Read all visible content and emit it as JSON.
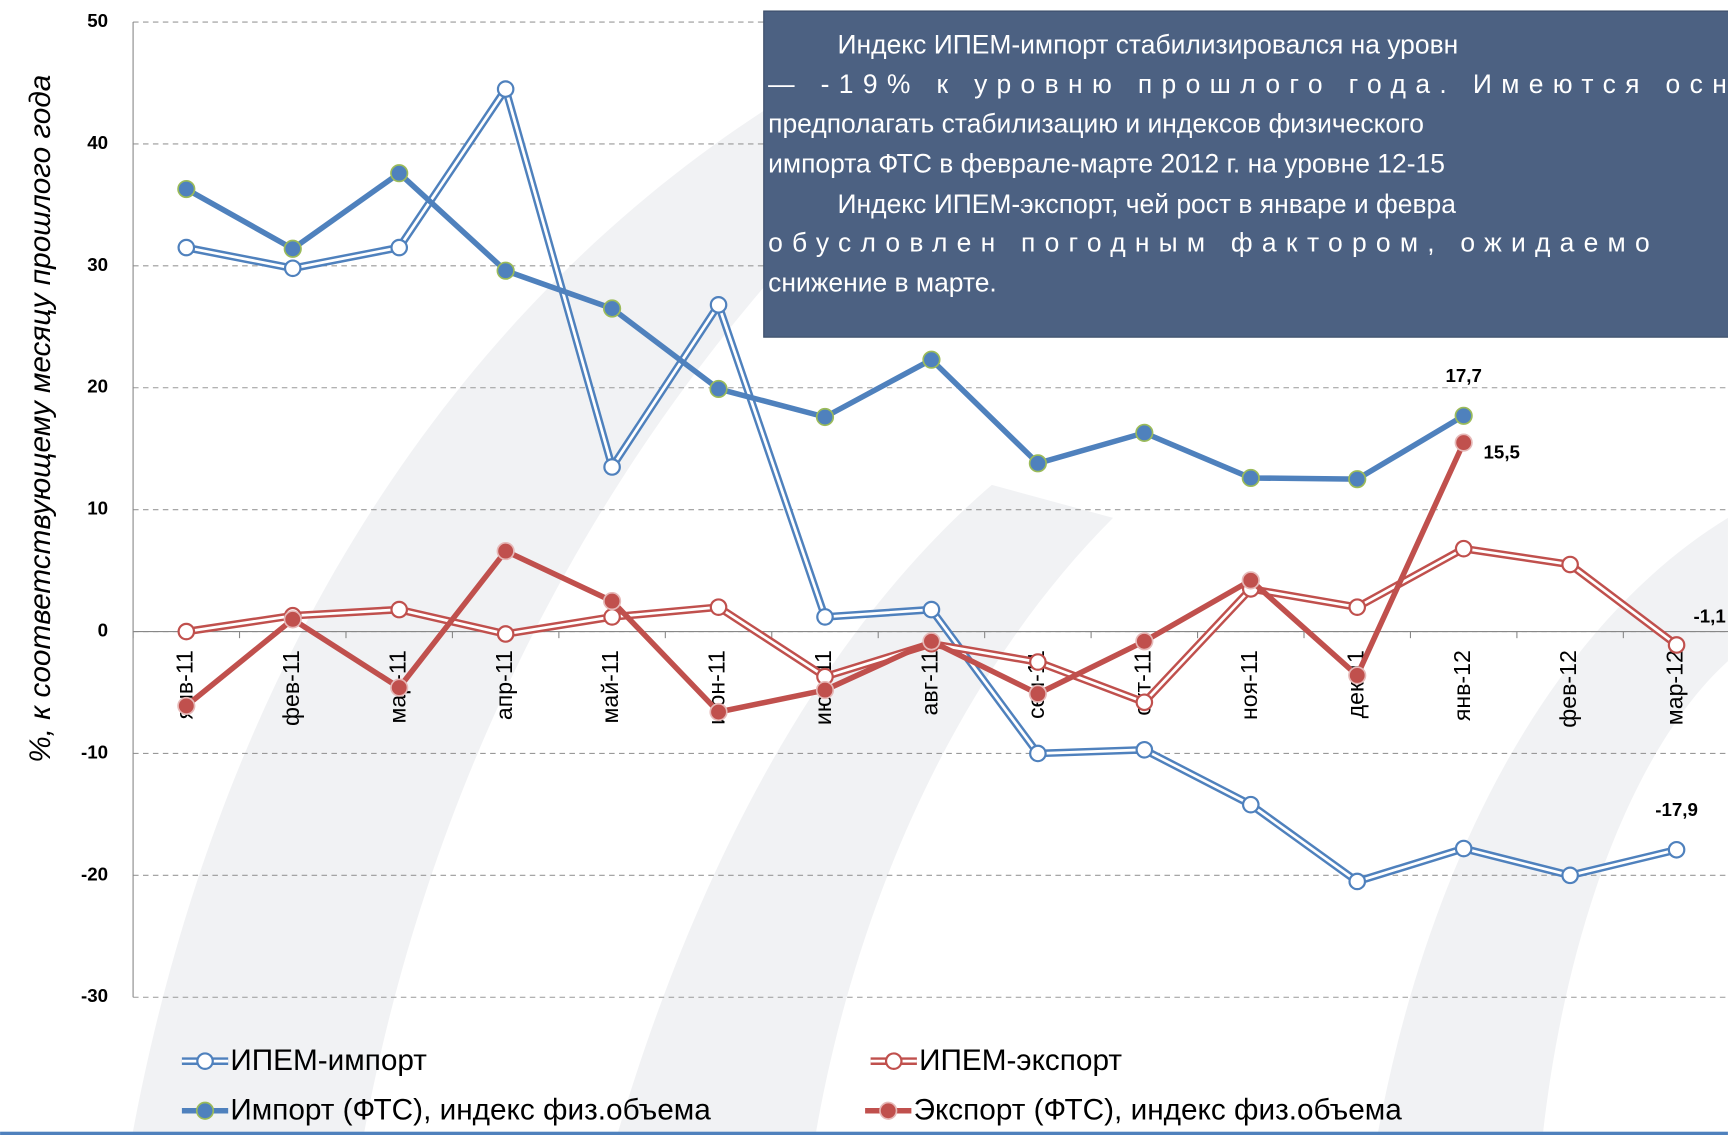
{
  "chart_data": {
    "type": "line",
    "ylabel": "%, к соответствующему месяцу прошлого года",
    "annotation": [
      "Индекс ИПЕМ-импорт стабилизировался на уровн",
      "— -19% к уровню прошлого года. Имеются осн",
      "предполагать стабилизацию и индексов физического",
      "импорта ФТС в феврале-марте 2012 г. на уровне 12-15",
      "Индекс ИПЕМ-экспорт, чей рост в январе и февра",
      "обусловлен погодным фактором, ожидаемо",
      "снижение в марте."
    ],
    "categories": [
      "янв-11",
      "фев-11",
      "мар-11",
      "апр-11",
      "май-11",
      "июн-11",
      "июл-11",
      "авг-11",
      "сен-11",
      "окт-11",
      "ноя-11",
      "дек-11",
      "янв-12",
      "фев-12",
      "мар-12"
    ],
    "ylim": [
      -30,
      50
    ],
    "yticks": [
      -30,
      -20,
      -10,
      0,
      10,
      20,
      30,
      40,
      50
    ],
    "grid": true,
    "series": [
      {
        "name": "ИПЕМ-импорт",
        "color": "#4f81bd",
        "style": "double",
        "values": [
          31.5,
          29.8,
          31.5,
          44.5,
          13.5,
          26.8,
          1.2,
          1.8,
          -10,
          -9.7,
          -14.2,
          -20.5,
          -17.8,
          -20,
          -17.9
        ],
        "value_labels": [
          null,
          null,
          null,
          null,
          null,
          null,
          null,
          null,
          null,
          null,
          null,
          null,
          null,
          null,
          "-17,9"
        ]
      },
      {
        "name": "ИПЕМ-экспорт",
        "color": "#c0504d",
        "style": "double",
        "values": [
          0,
          1.3,
          1.8,
          -0.2,
          1.2,
          2,
          -3.7,
          -1,
          -2.5,
          -5.8,
          3.5,
          2,
          6.8,
          5.5,
          -1.1
        ],
        "value_labels": [
          null,
          null,
          null,
          null,
          null,
          null,
          null,
          null,
          null,
          null,
          null,
          null,
          null,
          null,
          "-1,1"
        ]
      },
      {
        "name": "Импорт (ФТС), индекс физ.объема",
        "color": "#4f81bd",
        "style": "solid",
        "values": [
          36.3,
          31.4,
          37.6,
          29.6,
          26.5,
          19.9,
          17.6,
          22.3,
          13.8,
          16.3,
          12.6,
          12.5,
          17.7,
          null,
          null
        ],
        "value_labels": [
          null,
          null,
          null,
          null,
          null,
          null,
          null,
          null,
          null,
          null,
          null,
          null,
          "17,7",
          null,
          null
        ]
      },
      {
        "name": "Экспорт (ФТС), индекс физ.объема",
        "color": "#c0504d",
        "style": "solid",
        "values": [
          -6.1,
          1,
          -4.6,
          6.6,
          2.5,
          -6.6,
          -4.8,
          -0.8,
          -5.1,
          -0.8,
          4.2,
          -3.6,
          15.5,
          null,
          null
        ],
        "value_labels": [
          null,
          null,
          null,
          null,
          null,
          null,
          null,
          null,
          null,
          null,
          null,
          null,
          "15,5",
          null,
          null
        ]
      }
    ]
  }
}
